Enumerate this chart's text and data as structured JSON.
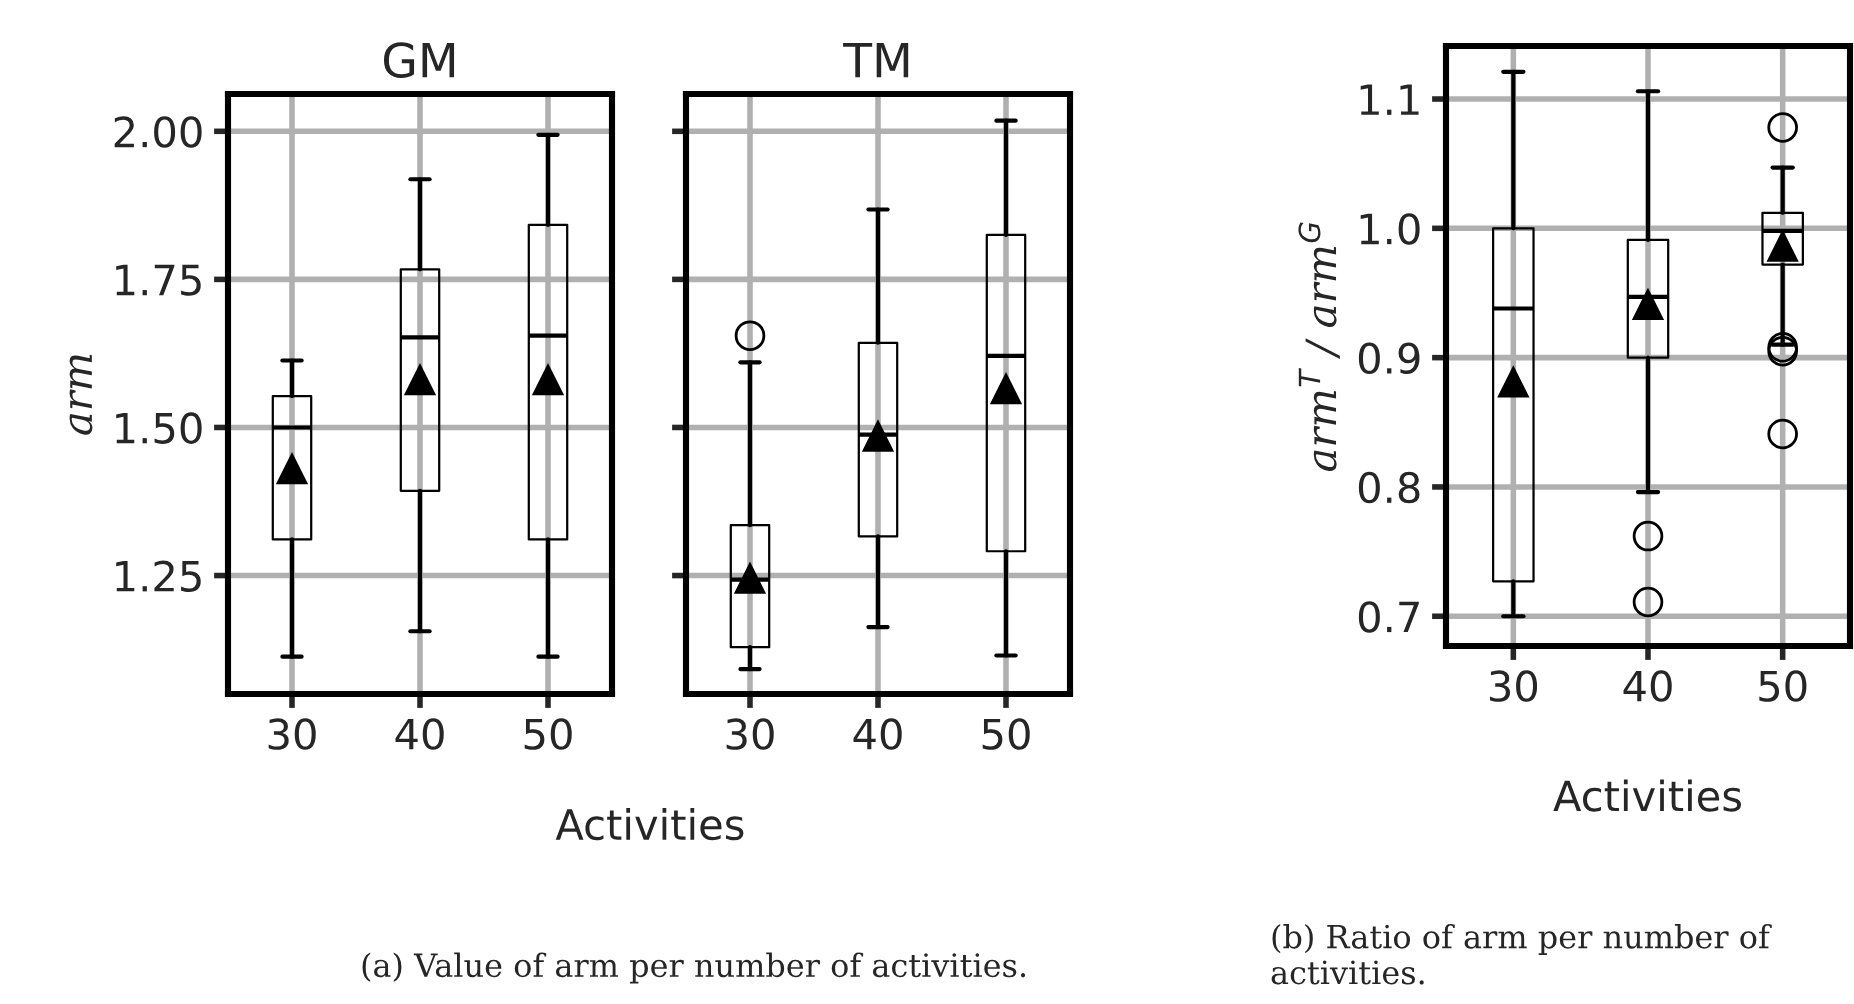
{
  "chart_data": [
    {
      "type": "box",
      "title": "GM",
      "ylabel": "arm",
      "xlabel": "Activities",
      "categories": [
        "30",
        "40",
        "50"
      ],
      "ylim": [
        1.05,
        2.063
      ],
      "yticks": [
        {
          "value": 1.25,
          "label": "1.25"
        },
        {
          "value": 1.5,
          "label": "1.50"
        },
        {
          "value": 1.75,
          "label": "1.75"
        },
        {
          "value": 2.0,
          "label": "2.00"
        }
      ],
      "grid": true,
      "boxes": [
        {
          "low": 1.113,
          "q1": 1.311,
          "median": 1.5,
          "q3": 1.553,
          "high": 1.613,
          "mean": 1.43
        },
        {
          "low": 1.156,
          "q1": 1.393,
          "median": 1.652,
          "q3": 1.767,
          "high": 1.919,
          "mean": 1.58
        },
        {
          "low": 1.113,
          "q1": 1.311,
          "median": 1.655,
          "q3": 1.842,
          "high": 1.994,
          "mean": 1.58
        }
      ],
      "annotations": [
        "(a) Value of arm per number of activities."
      ]
    },
    {
      "type": "box",
      "title": "TM",
      "categories": [
        "30",
        "40",
        "50"
      ],
      "ylim": [
        1.05,
        2.063
      ],
      "yticks": [
        1.25,
        1.5,
        1.75,
        2.0
      ],
      "grid": true,
      "tick_labels": "x",
      "boxes": [
        {
          "low": 1.092,
          "q1": 1.129,
          "median": 1.243,
          "q3": 1.335,
          "high": 1.61,
          "mean": 1.245,
          "outliers": [
            1.655
          ]
        },
        {
          "low": 1.163,
          "q1": 1.316,
          "median": 1.488,
          "q3": 1.643,
          "high": 1.868,
          "mean": 1.485
        },
        {
          "low": 1.115,
          "q1": 1.291,
          "median": 1.621,
          "q3": 1.825,
          "high": 2.018,
          "mean": 1.565
        }
      ]
    },
    {
      "type": "box",
      "ylabel": "arm$^{T}$ / arm$^{G}$",
      "xlabel": "Activities",
      "categories": [
        "30",
        "40",
        "50"
      ],
      "ylim": [
        0.677,
        1.141
      ],
      "yticks": [
        0.7,
        0.8,
        0.9,
        {
          "value": 1.0,
          "label": "1.0"
        },
        1.1
      ],
      "grid": true,
      "boxes": [
        {
          "low": 0.7,
          "q1": 0.727,
          "median": 0.938,
          "q3": 1.0,
          "high": 1.121,
          "mean": 0.881
        },
        {
          "low": 0.796,
          "q1": 0.9,
          "median": 0.947,
          "q3": 0.991,
          "high": 1.106,
          "mean": 0.941,
          "outliers": [
            0.762,
            0.711
          ]
        },
        {
          "low": 0.91,
          "q1": 0.972,
          "median": 0.998,
          "q3": 1.012,
          "high": 1.047,
          "mean": 0.986,
          "outliers": [
            1.078,
            0.908,
            0.905,
            0.841
          ]
        }
      ],
      "annotations": [
        "(b) Ratio of arm per number of activities."
      ]
    }
  ]
}
